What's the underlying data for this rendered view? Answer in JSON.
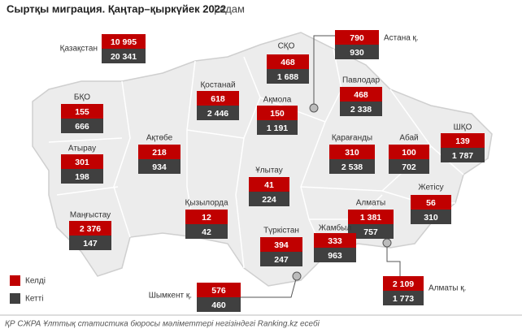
{
  "header": {
    "title": "Сыртқы миграция. Қаңтар–қыркүйек 2022",
    "unit": "| адам"
  },
  "regions": [
    {
      "name": "Қазақстан",
      "arrived": "10 995",
      "left": "20 341"
    },
    {
      "name": "СҚО",
      "arrived": "468",
      "left": "1 688"
    },
    {
      "name": "Астана қ.",
      "arrived": "790",
      "left": "930"
    },
    {
      "name": "Қостанай",
      "arrived": "618",
      "left": "2 446"
    },
    {
      "name": "Павлодар",
      "arrived": "468",
      "left": "2 338"
    },
    {
      "name": "Ақмола",
      "arrived": "150",
      "left": "1 191"
    },
    {
      "name": "БҚО",
      "arrived": "155",
      "left": "666"
    },
    {
      "name": "ШҚО",
      "arrived": "139",
      "left": "1 787"
    },
    {
      "name": "Ақтөбе",
      "arrived": "218",
      "left": "934"
    },
    {
      "name": "Қарағанды",
      "arrived": "310",
      "left": "2 538"
    },
    {
      "name": "Абай",
      "arrived": "100",
      "left": "702"
    },
    {
      "name": "Атырау",
      "arrived": "301",
      "left": "198"
    },
    {
      "name": "Ұлытау",
      "arrived": "41",
      "left": "224"
    },
    {
      "name": "Жетісу",
      "arrived": "56",
      "left": "310"
    },
    {
      "name": "Қызылорда",
      "arrived": "12",
      "left": "42"
    },
    {
      "name": "Маңғыстау",
      "arrived": "2 376",
      "left": "147"
    },
    {
      "name": "Алматы",
      "arrived": "1 381",
      "left": "757"
    },
    {
      "name": "Түркістан",
      "arrived": "394",
      "left": "247"
    },
    {
      "name": "Жамбыл",
      "arrived": "333",
      "left": "963"
    },
    {
      "name": "Шымкент қ.",
      "arrived": "576",
      "left": "460"
    },
    {
      "name": "Алматы қ.",
      "arrived": "2 109",
      "left": "1 773"
    }
  ],
  "legend": {
    "arrived": "Келді",
    "left": "Кетті"
  },
  "source": "ҚР СЖРА Ұлттық статистика бюросы мәліметтері негізіндегі Ranking.kz есебі"
}
